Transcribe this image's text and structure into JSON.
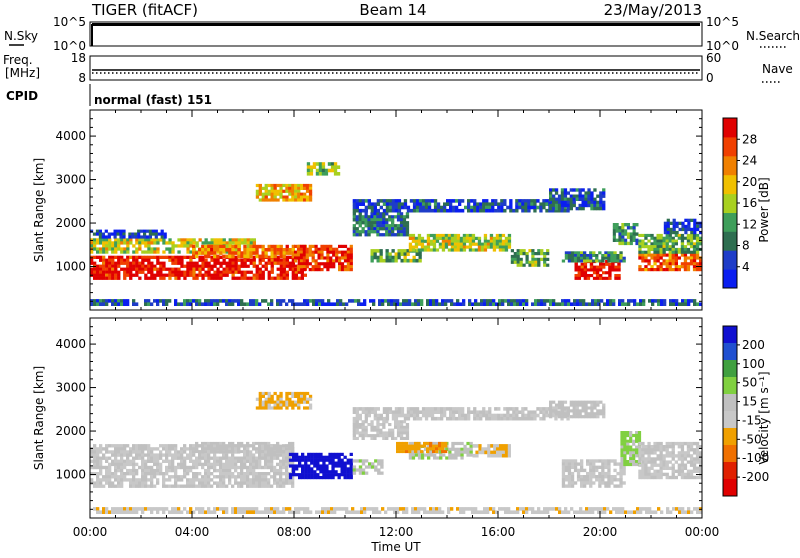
{
  "header": {
    "station": "TIGER (fitACF)",
    "beam": "Beam 14",
    "date": "23/May/2013"
  },
  "panels": {
    "nsky": {
      "label": "N.Sky",
      "right_label": "N.Search",
      "left_ticks": [
        "10^5",
        "10^0"
      ],
      "right_ticks": [
        "10^5",
        "10^0"
      ]
    },
    "freq": {
      "label_line1": "Freq.",
      "label_line2": "[MHz]",
      "right_label": "Nave",
      "left_ticks": [
        "18",
        "8"
      ],
      "right_ticks": [
        "60",
        "0"
      ]
    },
    "cpid": {
      "label": "CPID",
      "text": "normal (fast) 151"
    }
  },
  "colors": {
    "power_scale": [
      "#0a1ef0",
      "#1e3cc8",
      "#2e6e50",
      "#3e9e5a",
      "#a8d020",
      "#f0c000",
      "#f08000",
      "#f04000",
      "#e00000"
    ],
    "velocity_scale": [
      "#1010d0",
      "#2050d0",
      "#40a040",
      "#80d040",
      "#c0c0c0",
      "#c8c8c8",
      "#f0a000",
      "#f07000",
      "#e02000",
      "#e00000"
    ]
  },
  "chart_data": [
    {
      "type": "heatmap",
      "name": "power",
      "xlabel": "Time UT",
      "ylabel": "Slant Range [km]",
      "x_ticks": [
        "00:00",
        "04:00",
        "08:00",
        "12:00",
        "16:00",
        "20:00",
        "00:00"
      ],
      "y_ticks": [
        "1000",
        "2000",
        "3000",
        "4000"
      ],
      "ylim": [
        0,
        4600
      ],
      "colorbar": {
        "label": "Power [dB]",
        "ticks": [
          "4",
          "8",
          "12",
          "16",
          "20",
          "24",
          "28"
        ],
        "range": [
          0,
          30
        ]
      },
      "regions": [
        {
          "t0": 0.0,
          "t1": 8.5,
          "r0": 700,
          "r1": 1250,
          "level": 28
        },
        {
          "t0": 0.0,
          "t1": 6.5,
          "r0": 1300,
          "r1": 1650,
          "level": 16
        },
        {
          "t0": 0.0,
          "t1": 3.0,
          "r0": 1650,
          "r1": 1850,
          "level": 4
        },
        {
          "t0": 4.0,
          "t1": 8.5,
          "r0": 1200,
          "r1": 1500,
          "level": 22
        },
        {
          "t0": 8.0,
          "t1": 10.3,
          "r0": 900,
          "r1": 1500,
          "level": 26
        },
        {
          "t0": 6.5,
          "t1": 8.7,
          "r0": 2500,
          "r1": 2900,
          "level": 20
        },
        {
          "t0": 8.5,
          "t1": 9.8,
          "r0": 3100,
          "r1": 3400,
          "level": 14
        },
        {
          "t0": 10.3,
          "t1": 12.5,
          "r0": 1700,
          "r1": 2250,
          "level": 8
        },
        {
          "t0": 10.3,
          "t1": 18.8,
          "r0": 2250,
          "r1": 2550,
          "level": 6
        },
        {
          "t0": 11.0,
          "t1": 13.0,
          "r0": 1100,
          "r1": 1400,
          "level": 12
        },
        {
          "t0": 12.5,
          "t1": 16.5,
          "r0": 1350,
          "r1": 1750,
          "level": 16
        },
        {
          "t0": 16.5,
          "t1": 18.0,
          "r0": 1000,
          "r1": 1400,
          "level": 12
        },
        {
          "t0": 18.0,
          "t1": 20.2,
          "r0": 2300,
          "r1": 2800,
          "level": 6
        },
        {
          "t0": 19.0,
          "t1": 20.8,
          "r0": 700,
          "r1": 1150,
          "level": 28
        },
        {
          "t0": 18.5,
          "t1": 21.0,
          "r0": 1100,
          "r1": 1350,
          "level": 10
        },
        {
          "t0": 20.5,
          "t1": 21.5,
          "r0": 1500,
          "r1": 2000,
          "level": 10
        },
        {
          "t0": 21.5,
          "t1": 24.0,
          "r0": 900,
          "r1": 1300,
          "level": 24
        },
        {
          "t0": 21.5,
          "t1": 24.0,
          "r0": 1300,
          "r1": 1750,
          "level": 12
        },
        {
          "t0": 22.5,
          "t1": 24.0,
          "r0": 1750,
          "r1": 2100,
          "level": 4
        },
        {
          "t0": 0.0,
          "t1": 24.0,
          "r0": 100,
          "r1": 250,
          "level": 6
        }
      ]
    },
    {
      "type": "heatmap",
      "name": "velocity",
      "xlabel": "Time UT",
      "ylabel": "Slant Range [km]",
      "x_ticks": [
        "00:00",
        "04:00",
        "08:00",
        "12:00",
        "16:00",
        "20:00",
        "00:00"
      ],
      "y_ticks": [
        "1000",
        "2000",
        "3000",
        "4000"
      ],
      "ylim": [
        0,
        4600
      ],
      "colorbar": {
        "label": "Velocity [m s⁻¹]",
        "ticks": [
          "200",
          "100",
          "50",
          "15",
          "-15",
          "-50",
          "-100",
          "-200"
        ],
        "range": [
          -250,
          250
        ]
      },
      "regions": [
        {
          "t0": 0.0,
          "t1": 8.0,
          "r0": 700,
          "r1": 1700,
          "level": 0
        },
        {
          "t0": 4.0,
          "t1": 8.0,
          "r0": 1500,
          "r1": 1750,
          "level": 20
        },
        {
          "t0": 7.8,
          "t1": 10.3,
          "r0": 900,
          "r1": 1500,
          "level": 250
        },
        {
          "t0": 10.3,
          "t1": 11.5,
          "r0": 1000,
          "r1": 1350,
          "level": 30
        },
        {
          "t0": 6.5,
          "t1": 8.7,
          "r0": 2500,
          "r1": 2900,
          "level": -60
        },
        {
          "t0": 10.3,
          "t1": 18.8,
          "r0": 2250,
          "r1": 2550,
          "level": 0
        },
        {
          "t0": 10.3,
          "t1": 12.5,
          "r0": 1800,
          "r1": 2250,
          "level": 0
        },
        {
          "t0": 12.5,
          "t1": 15.0,
          "r0": 1350,
          "r1": 1750,
          "level": 30
        },
        {
          "t0": 12.0,
          "t1": 14.0,
          "r0": 1500,
          "r1": 1750,
          "level": -80
        },
        {
          "t0": 15.0,
          "t1": 16.5,
          "r0": 1400,
          "r1": 1700,
          "level": -40
        },
        {
          "t0": 18.0,
          "t1": 20.2,
          "r0": 2300,
          "r1": 2700,
          "level": 20
        },
        {
          "t0": 18.5,
          "t1": 21.0,
          "r0": 700,
          "r1": 1350,
          "level": 0
        },
        {
          "t0": 20.8,
          "t1": 21.6,
          "r0": 1200,
          "r1": 2000,
          "level": 60
        },
        {
          "t0": 21.5,
          "t1": 24.0,
          "r0": 900,
          "r1": 1750,
          "level": 0
        },
        {
          "t0": 0.0,
          "t1": 24.0,
          "r0": 100,
          "r1": 250,
          "level": -30
        }
      ]
    }
  ]
}
